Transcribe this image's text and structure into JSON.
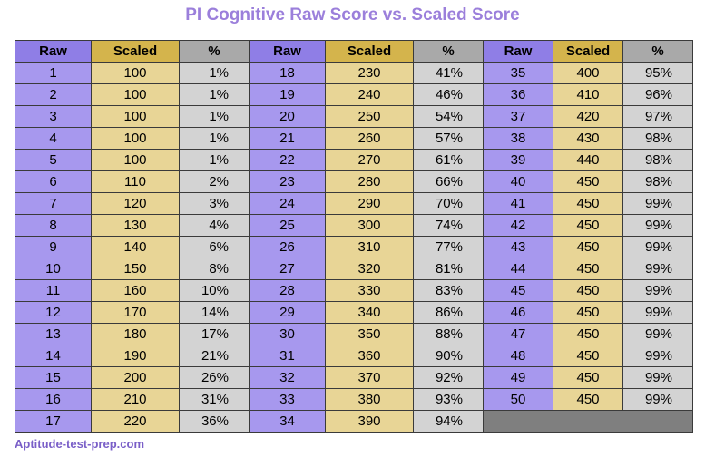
{
  "chart_data": {
    "type": "table",
    "title": "PI Cognitive Raw Score vs. Scaled Score",
    "headers": [
      "Raw",
      "Scaled",
      "%"
    ],
    "rows": [
      [
        "1",
        "100",
        "1%"
      ],
      [
        "2",
        "100",
        "1%"
      ],
      [
        "3",
        "100",
        "1%"
      ],
      [
        "4",
        "100",
        "1%"
      ],
      [
        "5",
        "100",
        "1%"
      ],
      [
        "6",
        "110",
        "2%"
      ],
      [
        "7",
        "120",
        "3%"
      ],
      [
        "8",
        "130",
        "4%"
      ],
      [
        "9",
        "140",
        "6%"
      ],
      [
        "10",
        "150",
        "8%"
      ],
      [
        "11",
        "160",
        "10%"
      ],
      [
        "12",
        "170",
        "14%"
      ],
      [
        "13",
        "180",
        "17%"
      ],
      [
        "14",
        "190",
        "21%"
      ],
      [
        "15",
        "200",
        "26%"
      ],
      [
        "16",
        "210",
        "31%"
      ],
      [
        "17",
        "220",
        "36%"
      ],
      [
        "18",
        "230",
        "41%"
      ],
      [
        "19",
        "240",
        "46%"
      ],
      [
        "20",
        "250",
        "54%"
      ],
      [
        "21",
        "260",
        "57%"
      ],
      [
        "22",
        "270",
        "61%"
      ],
      [
        "23",
        "280",
        "66%"
      ],
      [
        "24",
        "290",
        "70%"
      ],
      [
        "25",
        "300",
        "74%"
      ],
      [
        "26",
        "310",
        "77%"
      ],
      [
        "27",
        "320",
        "81%"
      ],
      [
        "28",
        "330",
        "83%"
      ],
      [
        "29",
        "340",
        "86%"
      ],
      [
        "30",
        "350",
        "88%"
      ],
      [
        "31",
        "360",
        "90%"
      ],
      [
        "32",
        "370",
        "92%"
      ],
      [
        "33",
        "380",
        "93%"
      ],
      [
        "34",
        "390",
        "94%"
      ],
      [
        "35",
        "400",
        "95%"
      ],
      [
        "36",
        "410",
        "96%"
      ],
      [
        "37",
        "420",
        "97%"
      ],
      [
        "38",
        "430",
        "98%"
      ],
      [
        "39",
        "440",
        "98%"
      ],
      [
        "40",
        "450",
        "98%"
      ],
      [
        "41",
        "450",
        "99%"
      ],
      [
        "42",
        "450",
        "99%"
      ],
      [
        "43",
        "450",
        "99%"
      ],
      [
        "44",
        "450",
        "99%"
      ],
      [
        "45",
        "450",
        "99%"
      ],
      [
        "46",
        "450",
        "99%"
      ],
      [
        "47",
        "450",
        "99%"
      ],
      [
        "48",
        "450",
        "99%"
      ],
      [
        "49",
        "450",
        "99%"
      ],
      [
        "50",
        "450",
        "99%"
      ]
    ]
  },
  "footer": "Aptitude-test-prep.com"
}
